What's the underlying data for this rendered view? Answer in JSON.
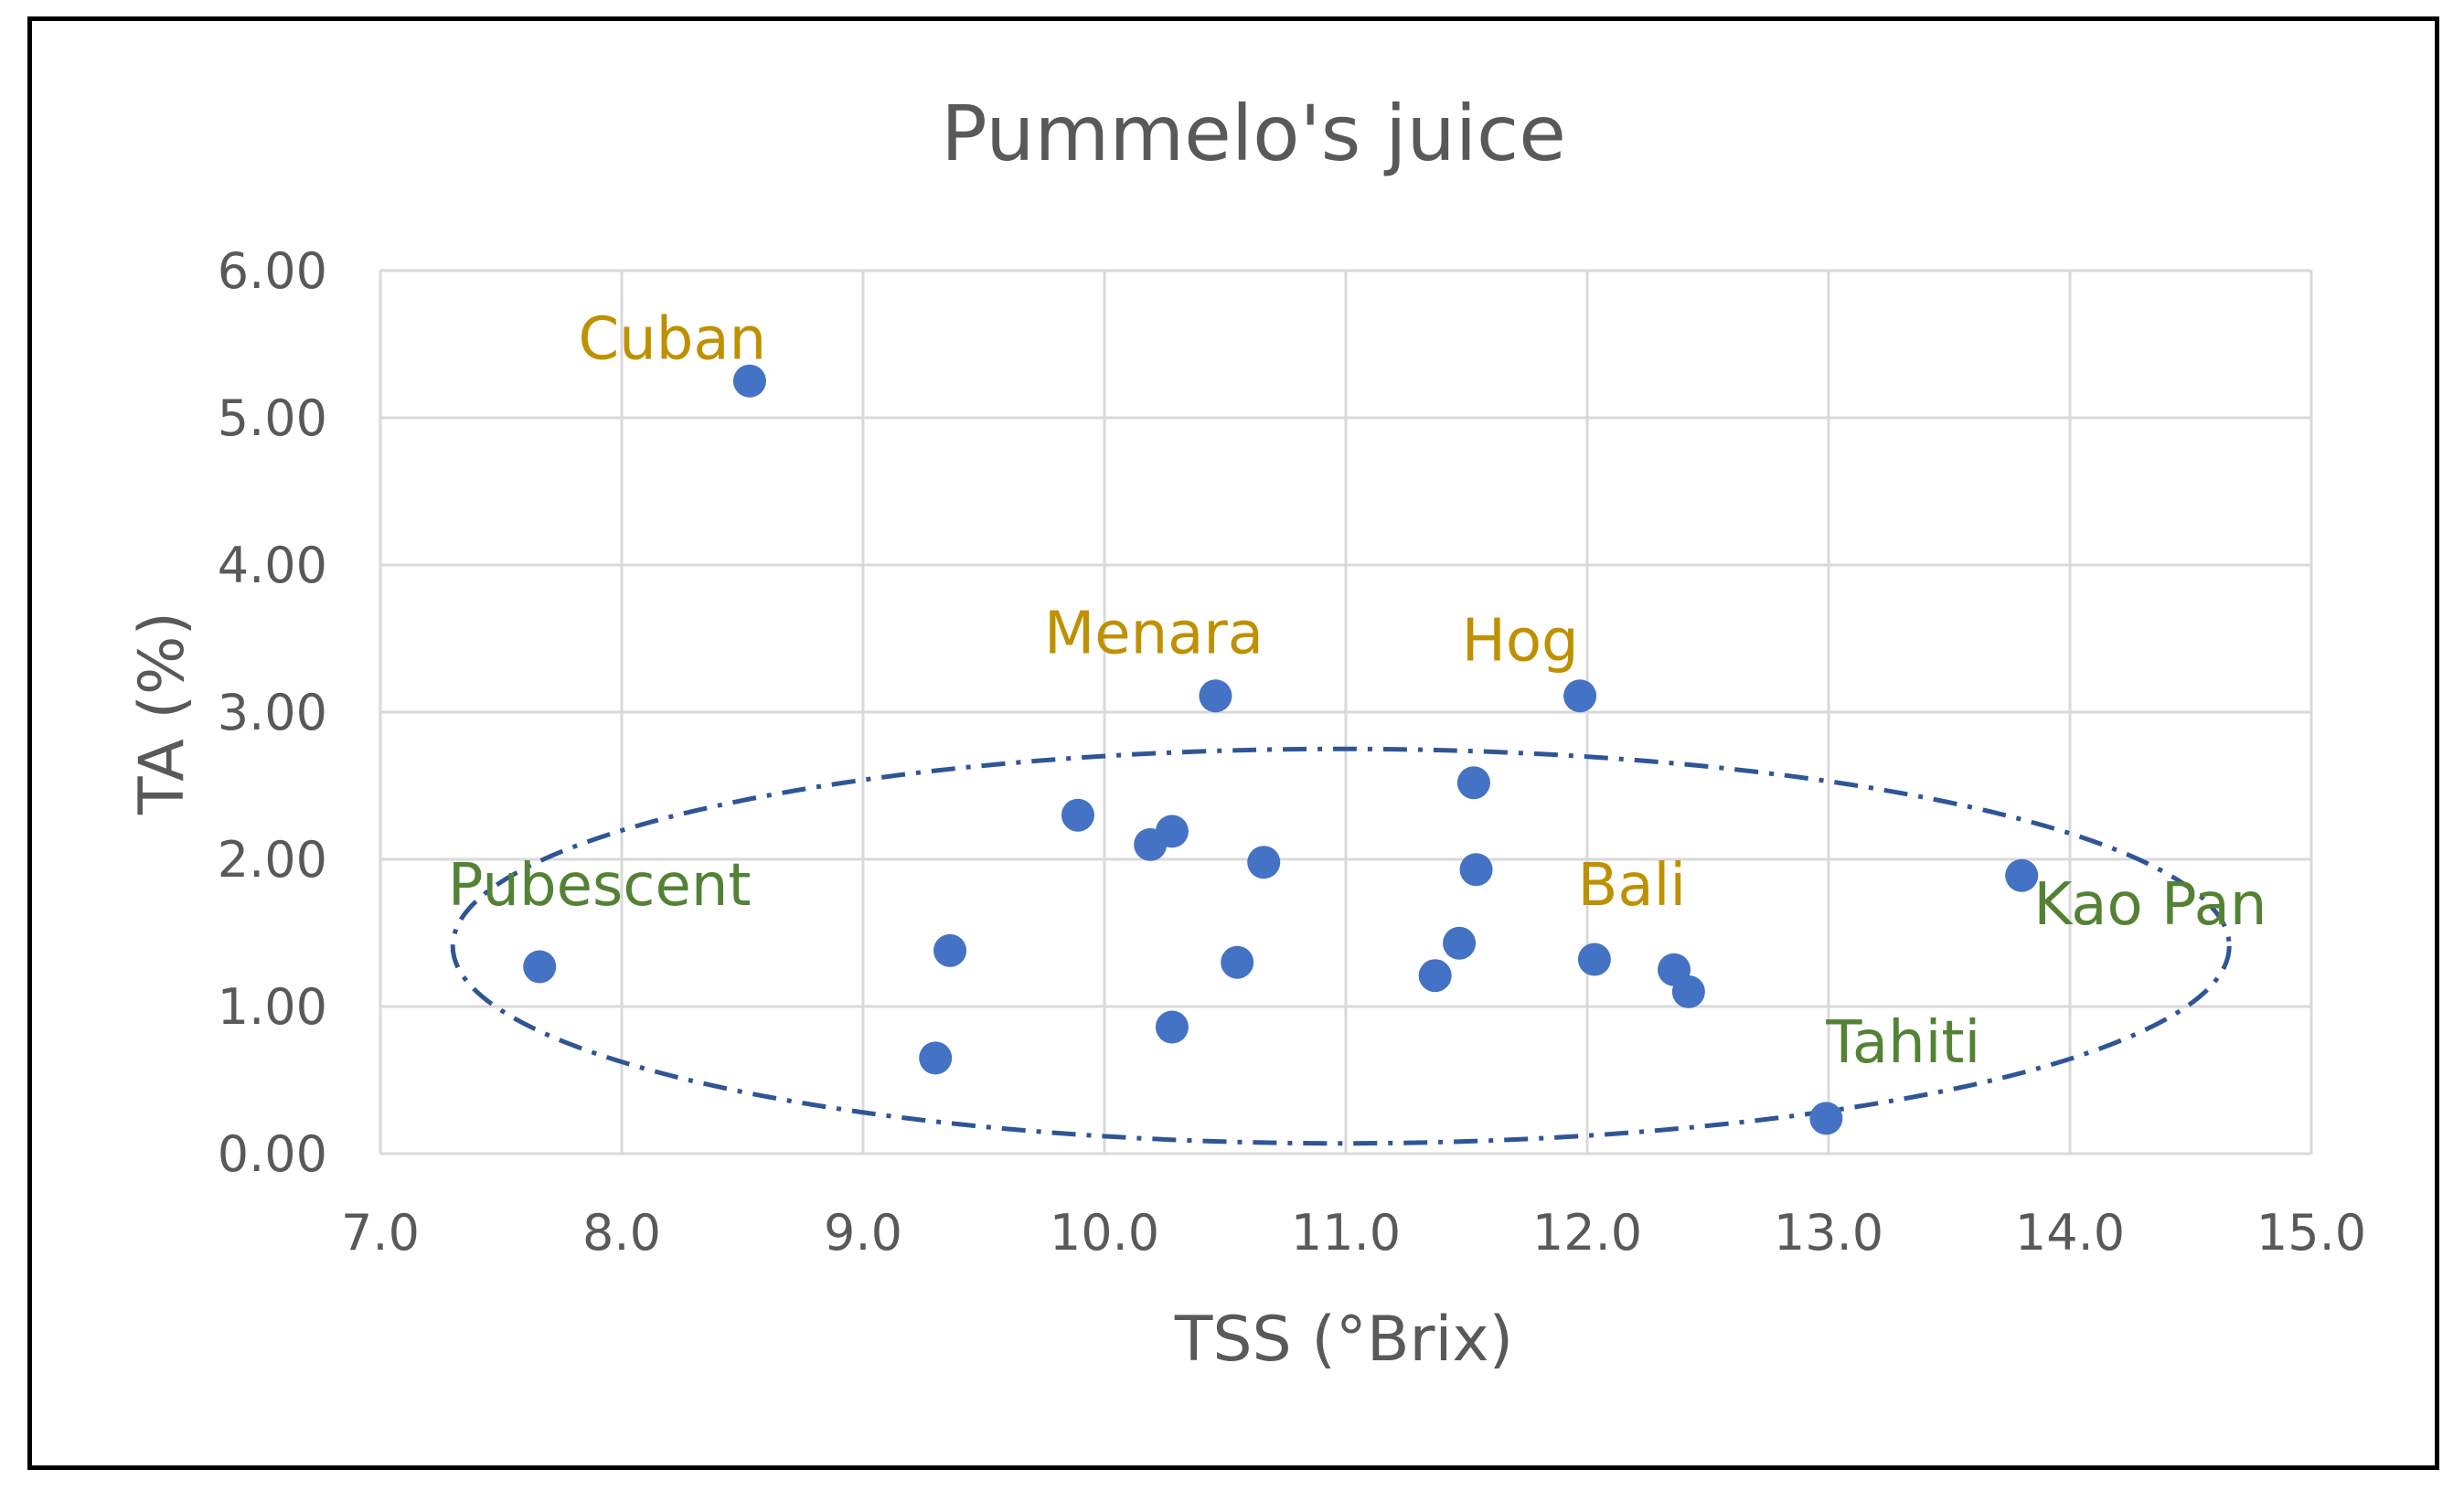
{
  "chart_data": {
    "type": "scatter",
    "title": "Pummelo's juice",
    "xlabel": "TSS (°Brix)",
    "ylabel": "TA (%)",
    "xlim": [
      7.0,
      15.0
    ],
    "ylim": [
      0.0,
      6.0
    ],
    "grid": true,
    "x_ticks": [
      "7.0",
      "8.0",
      "9.0",
      "10.0",
      "11.0",
      "12.0",
      "13.0",
      "14.0",
      "15.0"
    ],
    "y_ticks": [
      "0.00",
      "1.00",
      "2.00",
      "3.00",
      "4.00",
      "5.00",
      "6.00"
    ],
    "marker_color": "#4472C4",
    "points": [
      {
        "x": 8.53,
        "y": 5.25
      },
      {
        "x": 7.66,
        "y": 1.27
      },
      {
        "x": 9.3,
        "y": 0.65
      },
      {
        "x": 9.36,
        "y": 1.38
      },
      {
        "x": 9.89,
        "y": 2.3
      },
      {
        "x": 10.19,
        "y": 2.1
      },
      {
        "x": 10.28,
        "y": 2.19
      },
      {
        "x": 10.28,
        "y": 0.86
      },
      {
        "x": 10.46,
        "y": 3.11
      },
      {
        "x": 10.55,
        "y": 1.3
      },
      {
        "x": 10.66,
        "y": 1.98
      },
      {
        "x": 11.37,
        "y": 1.21
      },
      {
        "x": 11.47,
        "y": 1.43
      },
      {
        "x": 11.53,
        "y": 2.52
      },
      {
        "x": 11.54,
        "y": 1.93
      },
      {
        "x": 11.97,
        "y": 3.11
      },
      {
        "x": 12.03,
        "y": 1.32
      },
      {
        "x": 12.36,
        "y": 1.25
      },
      {
        "x": 12.42,
        "y": 1.1
      },
      {
        "x": 12.99,
        "y": 0.24
      },
      {
        "x": 13.8,
        "y": 1.89
      }
    ],
    "annotations": [
      {
        "text": "Cuban",
        "x": 7.82,
        "y": 5.4,
        "color": "#BF9000"
      },
      {
        "text": "Menara",
        "x": 9.75,
        "y": 3.4,
        "color": "#BF9000"
      },
      {
        "text": "Hog",
        "x": 11.48,
        "y": 3.35,
        "color": "#BF9000"
      },
      {
        "text": "Bali",
        "x": 11.96,
        "y": 1.69,
        "color": "#BF9000"
      },
      {
        "text": "Pubescent",
        "x": 7.28,
        "y": 1.69,
        "color": "#548235"
      },
      {
        "text": "Kao Pan",
        "x": 13.85,
        "y": 1.56,
        "color": "#548235"
      },
      {
        "text": "Tahiti",
        "x": 12.99,
        "y": 0.62,
        "color": "#548235"
      }
    ],
    "cluster_ellipse": {
      "center_x": 10.98,
      "center_y": 1.41,
      "radius_x": 3.68,
      "radius_y": 1.34,
      "color": "#2F5597",
      "style": "dash-dot"
    }
  }
}
